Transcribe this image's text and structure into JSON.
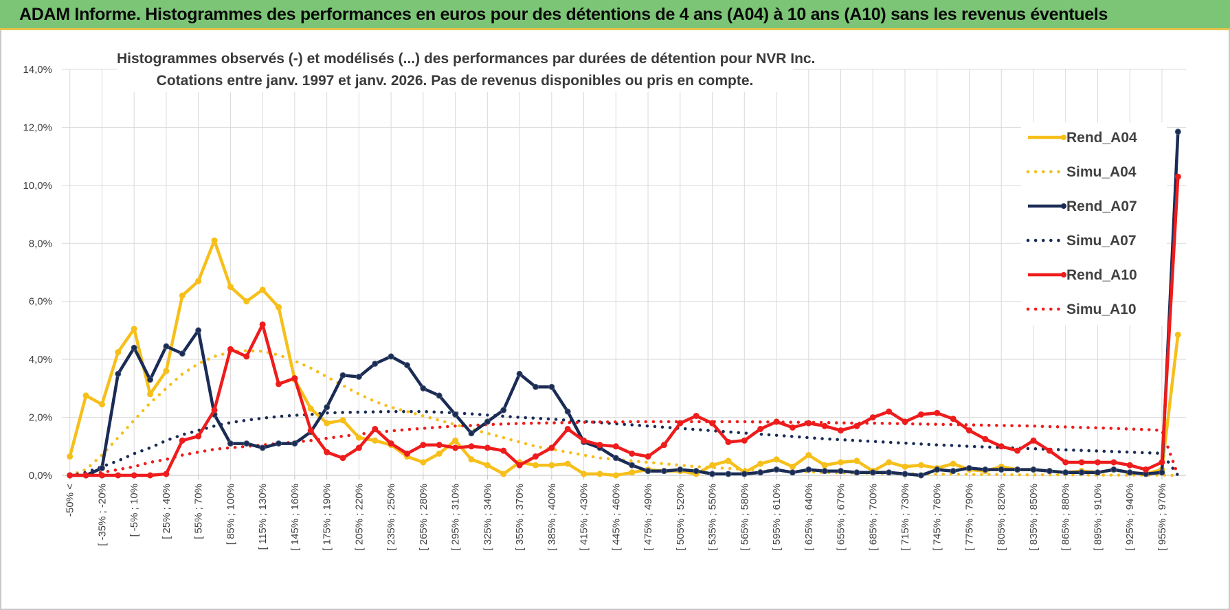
{
  "banner": {
    "title": "ADAM Informe. Histogrammes des performances en euros pour des détentions de 4 ans (A04) à 10 ans (A10) sans les revenus éventuels"
  },
  "colors": {
    "banner_bg": "#7cc576",
    "a04": "#f6bf1a",
    "a07": "#1a2c55",
    "a10": "#ee1c1c",
    "grid": "#d9d9d9"
  },
  "chart_data": {
    "type": "line",
    "title_line1": "Histogrammes observés (-) et modélisés (...) des performances par durées de détention pour NVR Inc.",
    "title_line2": "Cotations entre janv. 1997 et janv. 2026. Pas de revenus disponibles ou pris en compte.",
    "ylim": [
      0,
      14
    ],
    "y_ticks": [
      "0,0%",
      "2,0%",
      "4,0%",
      "6,0%",
      "8,0%",
      "10,0%",
      "12,0%",
      "14,0%"
    ],
    "x_tick_labels": [
      "-50% <",
      "[ -35% ; -20%",
      "[ -5% ; 10%",
      "[ 25% ; 40%",
      "[ 55% ; 70%",
      "[ 85% ; 100%",
      "[ 115% ; 130%",
      "[ 145% ; 160%",
      "[ 175% ; 190%",
      "[ 205% ; 220%",
      "[ 235% ; 250%",
      "[ 265% ; 280%",
      "[ 295% ; 310%",
      "[ 325% ; 340%",
      "[ 355% ; 370%",
      "[ 385% ; 400%",
      "[ 415% ; 430%",
      "[ 445% ; 460%",
      "[ 475% ; 490%",
      "[ 505% ; 520%",
      "[ 535% ; 550%",
      "[ 565% ; 580%",
      "[ 595% ; 610%",
      "[ 625% ; 640%",
      "[ 655% ; 670%",
      "[ 685% ; 700%",
      "[ 715% ; 730%",
      "[ 745% ; 760%",
      "[ 775% ; 790%",
      "[ 805% ; 820%",
      "[ 835% ; 850%",
      "[ 865% ; 880%",
      "[ 895% ; 910%",
      "[ 925% ; 940%",
      "[ 955% ; 970%"
    ],
    "categories_count": 70,
    "series": [
      {
        "name": "Rend_A04",
        "style": "solid",
        "color": "#f6bf1a",
        "values": [
          0.65,
          2.75,
          2.45,
          4.25,
          5.05,
          2.8,
          3.6,
          6.2,
          6.7,
          8.1,
          6.5,
          6.0,
          6.4,
          5.8,
          3.3,
          2.3,
          1.8,
          1.9,
          1.3,
          1.2,
          1.05,
          0.65,
          0.45,
          0.75,
          1.2,
          0.55,
          0.35,
          0.05,
          0.45,
          0.35,
          0.35,
          0.4,
          0.05,
          0.05,
          0.0,
          0.1,
          0.2,
          0.15,
          0.15,
          0.05,
          0.35,
          0.5,
          0.1,
          0.4,
          0.55,
          0.3,
          0.7,
          0.35,
          0.45,
          0.5,
          0.15,
          0.45,
          0.3,
          0.35,
          0.25,
          0.4,
          0.2,
          0.15,
          0.3,
          0.2,
          0.2,
          0.15,
          0.1,
          0.15,
          0.1,
          0.2,
          0.1,
          0.05,
          0.2,
          4.85
        ]
      },
      {
        "name": "Simu_A04",
        "style": "dotted",
        "color": "#f6bf1a",
        "values": [
          0.0,
          0.2,
          0.7,
          1.3,
          1.9,
          2.5,
          3.0,
          3.5,
          3.85,
          4.1,
          4.25,
          4.3,
          4.28,
          4.15,
          3.95,
          3.7,
          3.4,
          3.1,
          2.8,
          2.55,
          2.35,
          2.2,
          2.05,
          1.9,
          1.75,
          1.6,
          1.45,
          1.3,
          1.15,
          1.0,
          0.9,
          0.8,
          0.7,
          0.6,
          0.55,
          0.5,
          0.45,
          0.4,
          0.35,
          0.3,
          0.27,
          0.24,
          0.21,
          0.18,
          0.16,
          0.14,
          0.12,
          0.1,
          0.09,
          0.08,
          0.07,
          0.06,
          0.05,
          0.05,
          0.04,
          0.04,
          0.03,
          0.03,
          0.03,
          0.02,
          0.02,
          0.02,
          0.02,
          0.02,
          0.01,
          0.01,
          0.01,
          0.01,
          0.01,
          0.0
        ]
      },
      {
        "name": "Rend_A07",
        "style": "solid",
        "color": "#1a2c55",
        "values": [
          0.0,
          0.0,
          0.25,
          3.5,
          4.4,
          3.3,
          4.45,
          4.2,
          5.0,
          2.1,
          1.1,
          1.1,
          0.95,
          1.1,
          1.1,
          1.5,
          2.35,
          3.45,
          3.4,
          3.85,
          4.1,
          3.8,
          3.0,
          2.75,
          2.1,
          1.45,
          1.85,
          2.25,
          3.5,
          3.05,
          3.05,
          2.2,
          1.15,
          0.95,
          0.6,
          0.35,
          0.15,
          0.15,
          0.2,
          0.15,
          0.05,
          0.05,
          0.05,
          0.1,
          0.2,
          0.1,
          0.2,
          0.15,
          0.15,
          0.1,
          0.1,
          0.1,
          0.05,
          0.0,
          0.2,
          0.15,
          0.25,
          0.2,
          0.2,
          0.2,
          0.2,
          0.15,
          0.1,
          0.1,
          0.1,
          0.2,
          0.1,
          0.05,
          0.1,
          11.85
        ]
      },
      {
        "name": "Simu_A07",
        "style": "dotted",
        "color": "#1a2c55",
        "values": [
          0.0,
          0.1,
          0.3,
          0.5,
          0.75,
          0.95,
          1.2,
          1.4,
          1.55,
          1.7,
          1.82,
          1.9,
          1.97,
          2.03,
          2.07,
          2.1,
          2.15,
          2.17,
          2.18,
          2.19,
          2.2,
          2.2,
          2.2,
          2.18,
          2.15,
          2.12,
          2.08,
          2.04,
          2.0,
          1.97,
          1.94,
          1.9,
          1.86,
          1.82,
          1.78,
          1.74,
          1.7,
          1.66,
          1.62,
          1.58,
          1.54,
          1.5,
          1.46,
          1.42,
          1.38,
          1.34,
          1.3,
          1.26,
          1.23,
          1.2,
          1.17,
          1.14,
          1.11,
          1.08,
          1.05,
          1.03,
          1.0,
          0.98,
          0.96,
          0.94,
          0.92,
          0.9,
          0.88,
          0.86,
          0.84,
          0.82,
          0.8,
          0.78,
          0.76,
          0.0
        ]
      },
      {
        "name": "Rend_A10",
        "style": "solid",
        "color": "#ee1c1c",
        "values": [
          0.0,
          0.0,
          0.0,
          0.0,
          0.0,
          0.0,
          0.05,
          1.2,
          1.35,
          2.25,
          4.35,
          4.1,
          5.2,
          3.15,
          3.35,
          1.55,
          0.8,
          0.6,
          0.95,
          1.6,
          1.1,
          0.75,
          1.05,
          1.05,
          0.95,
          1.0,
          0.95,
          0.85,
          0.35,
          0.65,
          0.95,
          1.6,
          1.2,
          1.05,
          1.0,
          0.75,
          0.65,
          1.05,
          1.8,
          2.05,
          1.8,
          1.15,
          1.2,
          1.6,
          1.85,
          1.65,
          1.8,
          1.7,
          1.55,
          1.7,
          2.0,
          2.2,
          1.85,
          2.1,
          2.15,
          1.95,
          1.55,
          1.25,
          1.0,
          0.85,
          1.2,
          0.85,
          0.45,
          0.45,
          0.45,
          0.45,
          0.35,
          0.2,
          0.45,
          10.3
        ]
      },
      {
        "name": "Simu_A10",
        "style": "dotted",
        "color": "#ee1c1c",
        "values": [
          0.0,
          0.05,
          0.1,
          0.2,
          0.3,
          0.45,
          0.55,
          0.7,
          0.8,
          0.9,
          0.95,
          1.0,
          1.05,
          1.1,
          1.15,
          1.2,
          1.28,
          1.35,
          1.42,
          1.48,
          1.53,
          1.58,
          1.62,
          1.66,
          1.7,
          1.72,
          1.75,
          1.77,
          1.79,
          1.8,
          1.81,
          1.82,
          1.83,
          1.84,
          1.84,
          1.85,
          1.85,
          1.85,
          1.85,
          1.85,
          1.85,
          1.85,
          1.85,
          1.84,
          1.84,
          1.83,
          1.83,
          1.82,
          1.81,
          1.8,
          1.8,
          1.79,
          1.78,
          1.77,
          1.76,
          1.75,
          1.74,
          1.73,
          1.72,
          1.71,
          1.7,
          1.68,
          1.67,
          1.65,
          1.64,
          1.62,
          1.6,
          1.58,
          1.55,
          0.0
        ]
      }
    ],
    "legend_position": "right"
  }
}
